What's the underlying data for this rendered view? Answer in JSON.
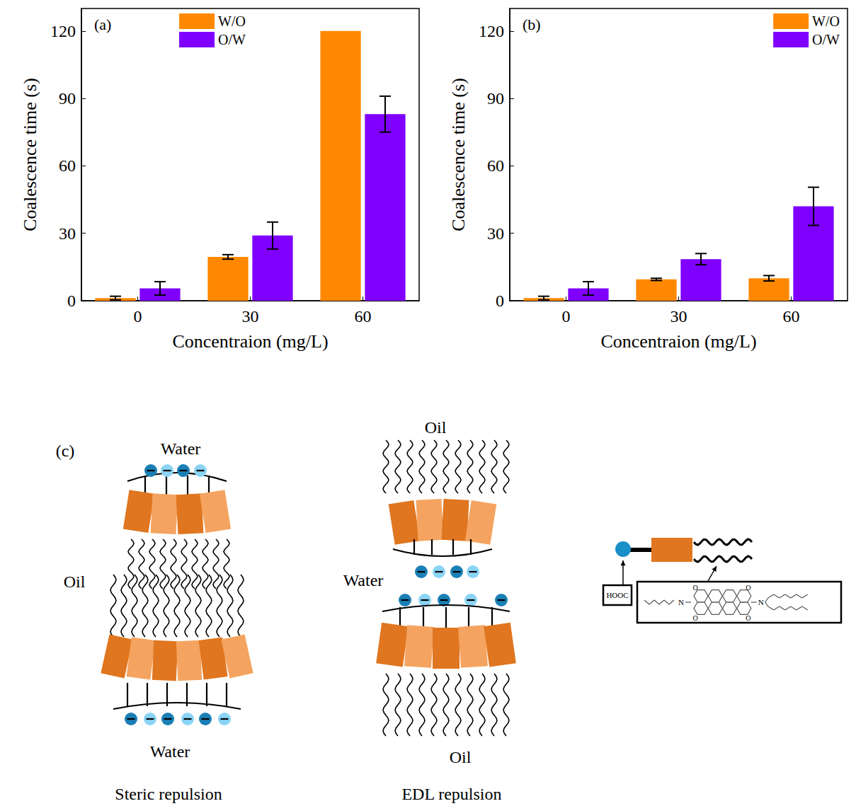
{
  "chart_data": [
    {
      "type": "bar",
      "panel": "(a)",
      "categories": [
        "0",
        "30",
        "60"
      ],
      "series": [
        {
          "name": "W/O",
          "color": "#ff8800",
          "values": [
            1.2,
            19.5,
            120
          ],
          "errors": [
            0.8,
            1.0,
            0
          ]
        },
        {
          "name": "O/W",
          "color": "#7f00ff",
          "values": [
            5.5,
            29,
            83
          ],
          "errors": [
            3,
            6,
            8
          ]
        }
      ],
      "x_label": "Concentraion (mg/L)",
      "y_label": "Coalescence time (s)",
      "ylim": [
        0,
        130
      ],
      "yticks": [
        0,
        30,
        60,
        90,
        120
      ],
      "grid": false,
      "legend": "top"
    },
    {
      "type": "bar",
      "panel": "(b)",
      "categories": [
        "0",
        "30",
        "60"
      ],
      "series": [
        {
          "name": "W/O",
          "color": "#ff8800",
          "values": [
            1.2,
            9.5,
            10
          ],
          "errors": [
            0.8,
            0.5,
            1.2
          ]
        },
        {
          "name": "O/W",
          "color": "#7f00ff",
          "values": [
            5.5,
            18.5,
            42
          ],
          "errors": [
            3,
            2.5,
            8.5
          ]
        }
      ],
      "x_label": "Concentraion (mg/L)",
      "y_label": "Coalescence time (s)",
      "ylim": [
        0,
        130
      ],
      "yticks": [
        0,
        30,
        60,
        90,
        120
      ],
      "grid": false,
      "legend": "top-right"
    }
  ],
  "diagram": {
    "letter": "(c)",
    "panels": [
      {
        "label": "Steric repulsion",
        "media": [
          "Water",
          "Oil",
          "Water"
        ]
      },
      {
        "label": "EDL repulsion",
        "media": [
          "Oil",
          "Water",
          "Oil"
        ]
      }
    ],
    "molecule": {
      "head": "HOOC",
      "atoms": [
        "N",
        "N",
        "O",
        "O",
        "O",
        "O"
      ]
    }
  }
}
